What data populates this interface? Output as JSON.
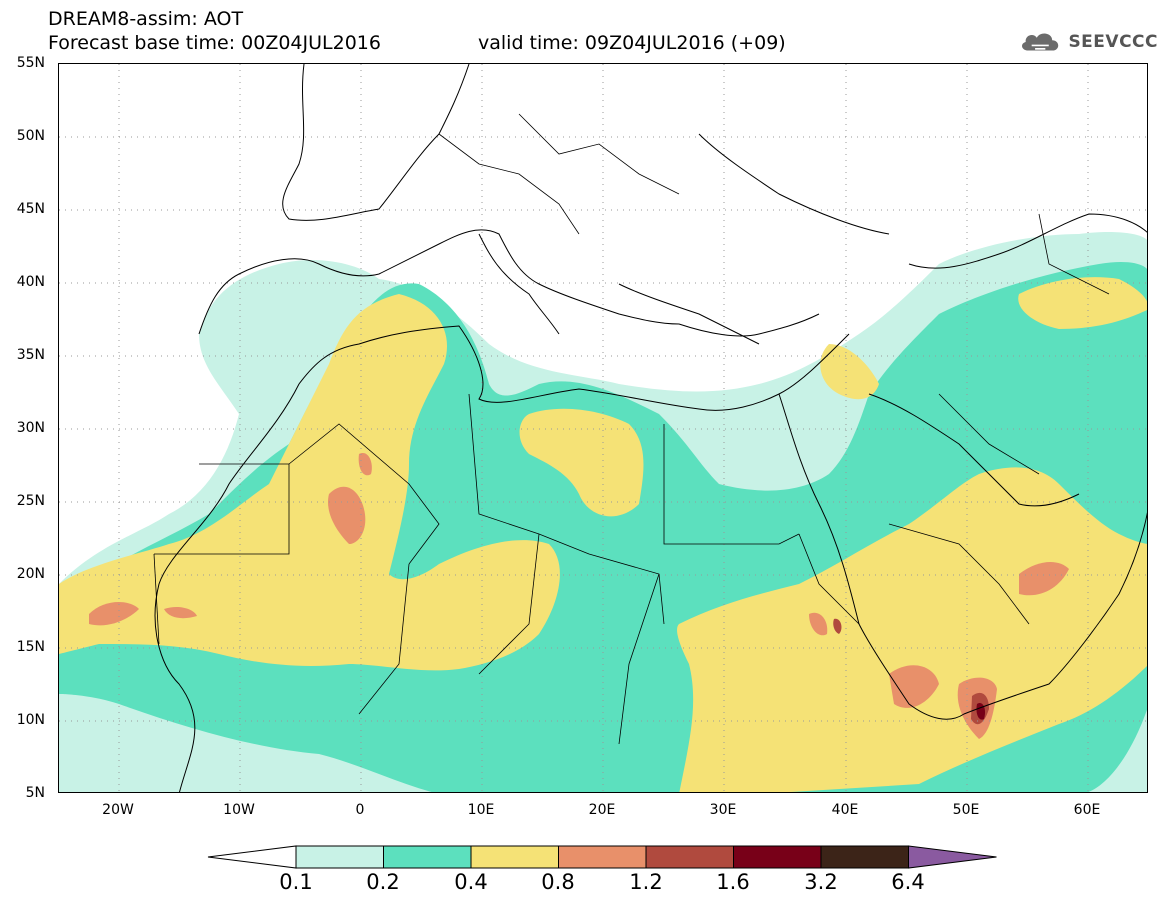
{
  "header": {
    "title_line1": "DREAM8-assim: AOT",
    "title_line2": "Forecast base time: 00Z04JUL2016",
    "valid_time": "valid time: 09Z04JUL2016 (+09)",
    "logo_text": "SEEVCCC"
  },
  "map": {
    "lat_labels": [
      "55N",
      "50N",
      "45N",
      "40N",
      "35N",
      "30N",
      "25N",
      "20N",
      "15N",
      "10N",
      "5N"
    ],
    "lon_labels": [
      "20W",
      "10W",
      "0",
      "10E",
      "20E",
      "30E",
      "40E",
      "50E",
      "60E"
    ],
    "lon_range": [
      -25,
      65
    ],
    "lat_range": [
      5,
      55
    ],
    "variable": "AOT"
  },
  "colorbar": {
    "labels": [
      "0.1",
      "0.2",
      "0.4",
      "0.8",
      "1.2",
      "1.6",
      "3.2",
      "6.4"
    ],
    "colors": [
      "#c8f2e6",
      "#5ce0be",
      "#f5e276",
      "#e8906a",
      "#b04a3e",
      "#780018",
      "#3c2418",
      "#8a5aa0"
    ],
    "under_color": "#ffffff",
    "over_color": "#8a5aa0"
  }
}
